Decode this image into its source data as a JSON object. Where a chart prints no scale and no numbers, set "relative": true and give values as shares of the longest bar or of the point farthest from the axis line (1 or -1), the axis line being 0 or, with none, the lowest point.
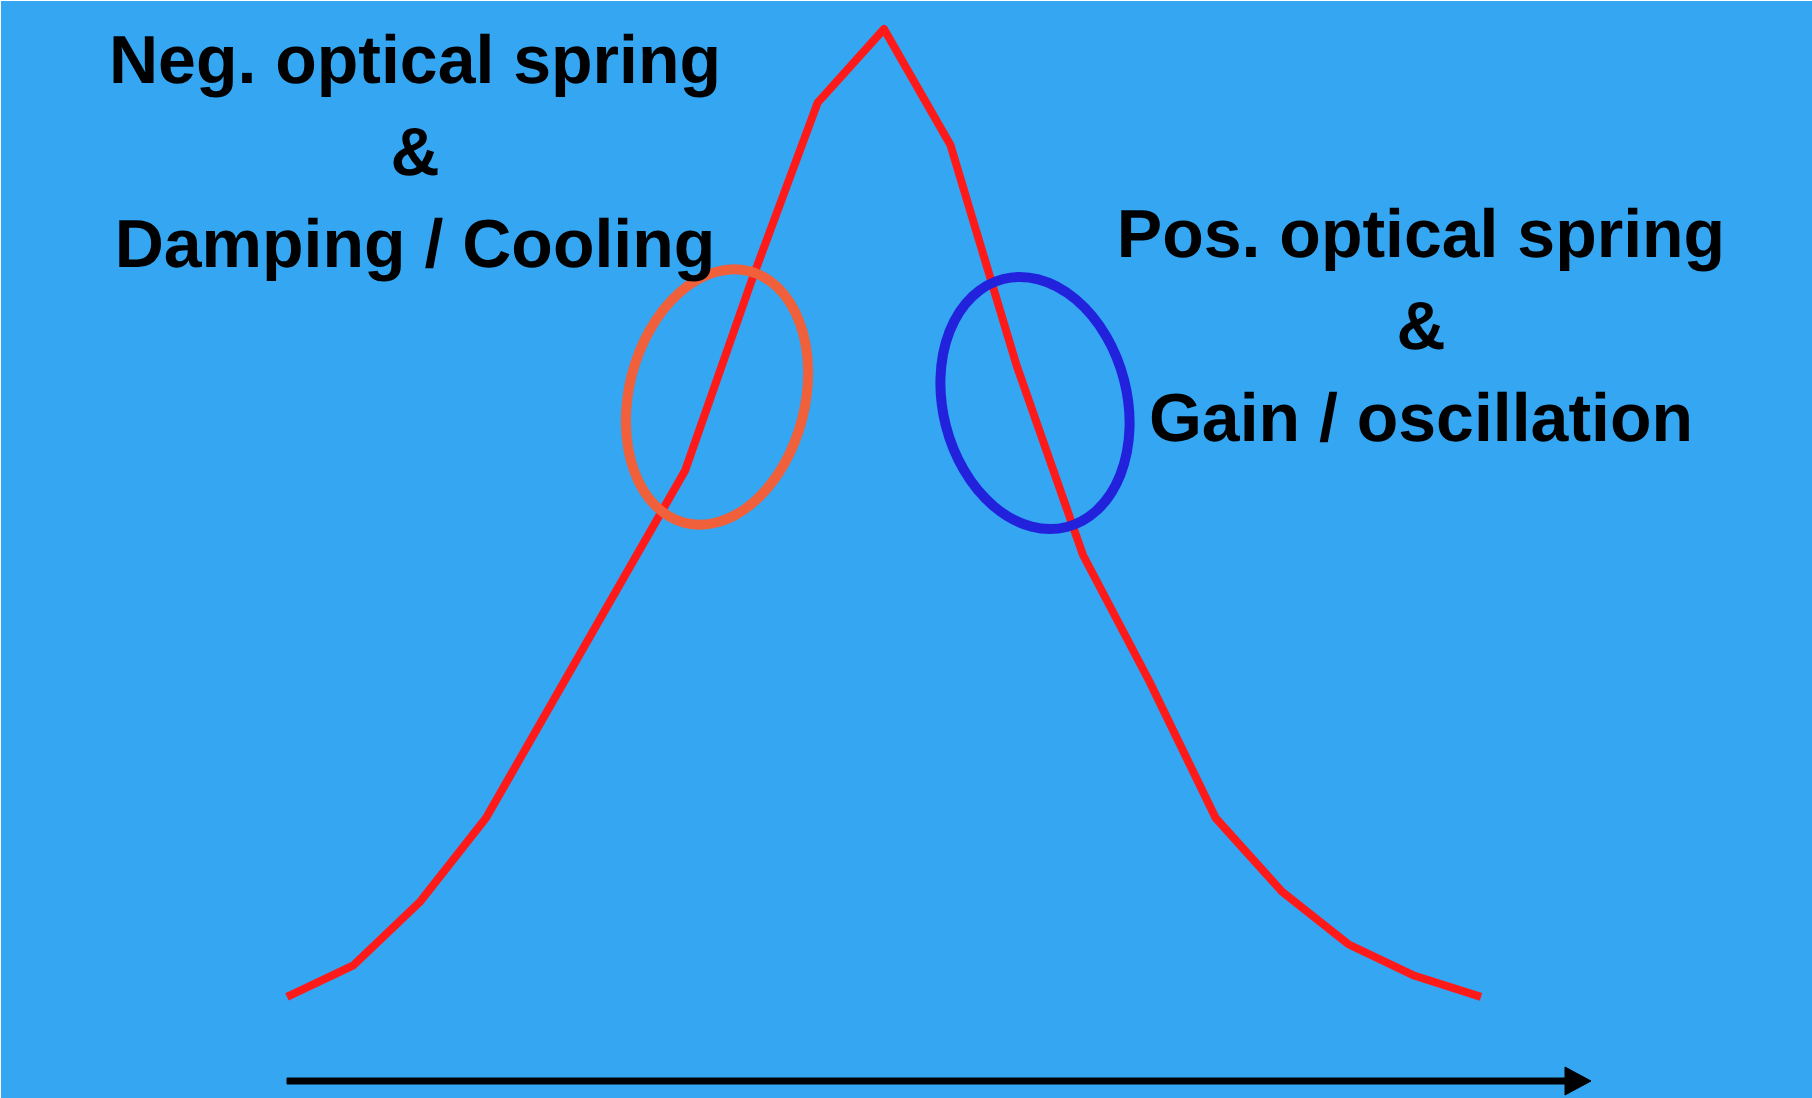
{
  "chart_data": {
    "type": "line",
    "relative": true,
    "categories": [
      null,
      null,
      null,
      null,
      null,
      null,
      null,
      null,
      null,
      null,
      null,
      null,
      null,
      null,
      null,
      null,
      null,
      null,
      null
    ],
    "series": [
      {
        "color": "#ff1a1a",
        "values": [
          0.08,
          0.11,
          0.17,
          0.25,
          0.36,
          0.47,
          0.58,
          0.76,
          0.93,
          1.0,
          0.89,
          0.68,
          0.5,
          0.38,
          0.25,
          0.18,
          0.13,
          0.1,
          0.08
        ]
      }
    ],
    "annotations": [
      "Neg. optical spring\n&\nDamping / Cooling",
      "Pos. optical spring\n&\nGain / oscillation"
    ]
  }
}
